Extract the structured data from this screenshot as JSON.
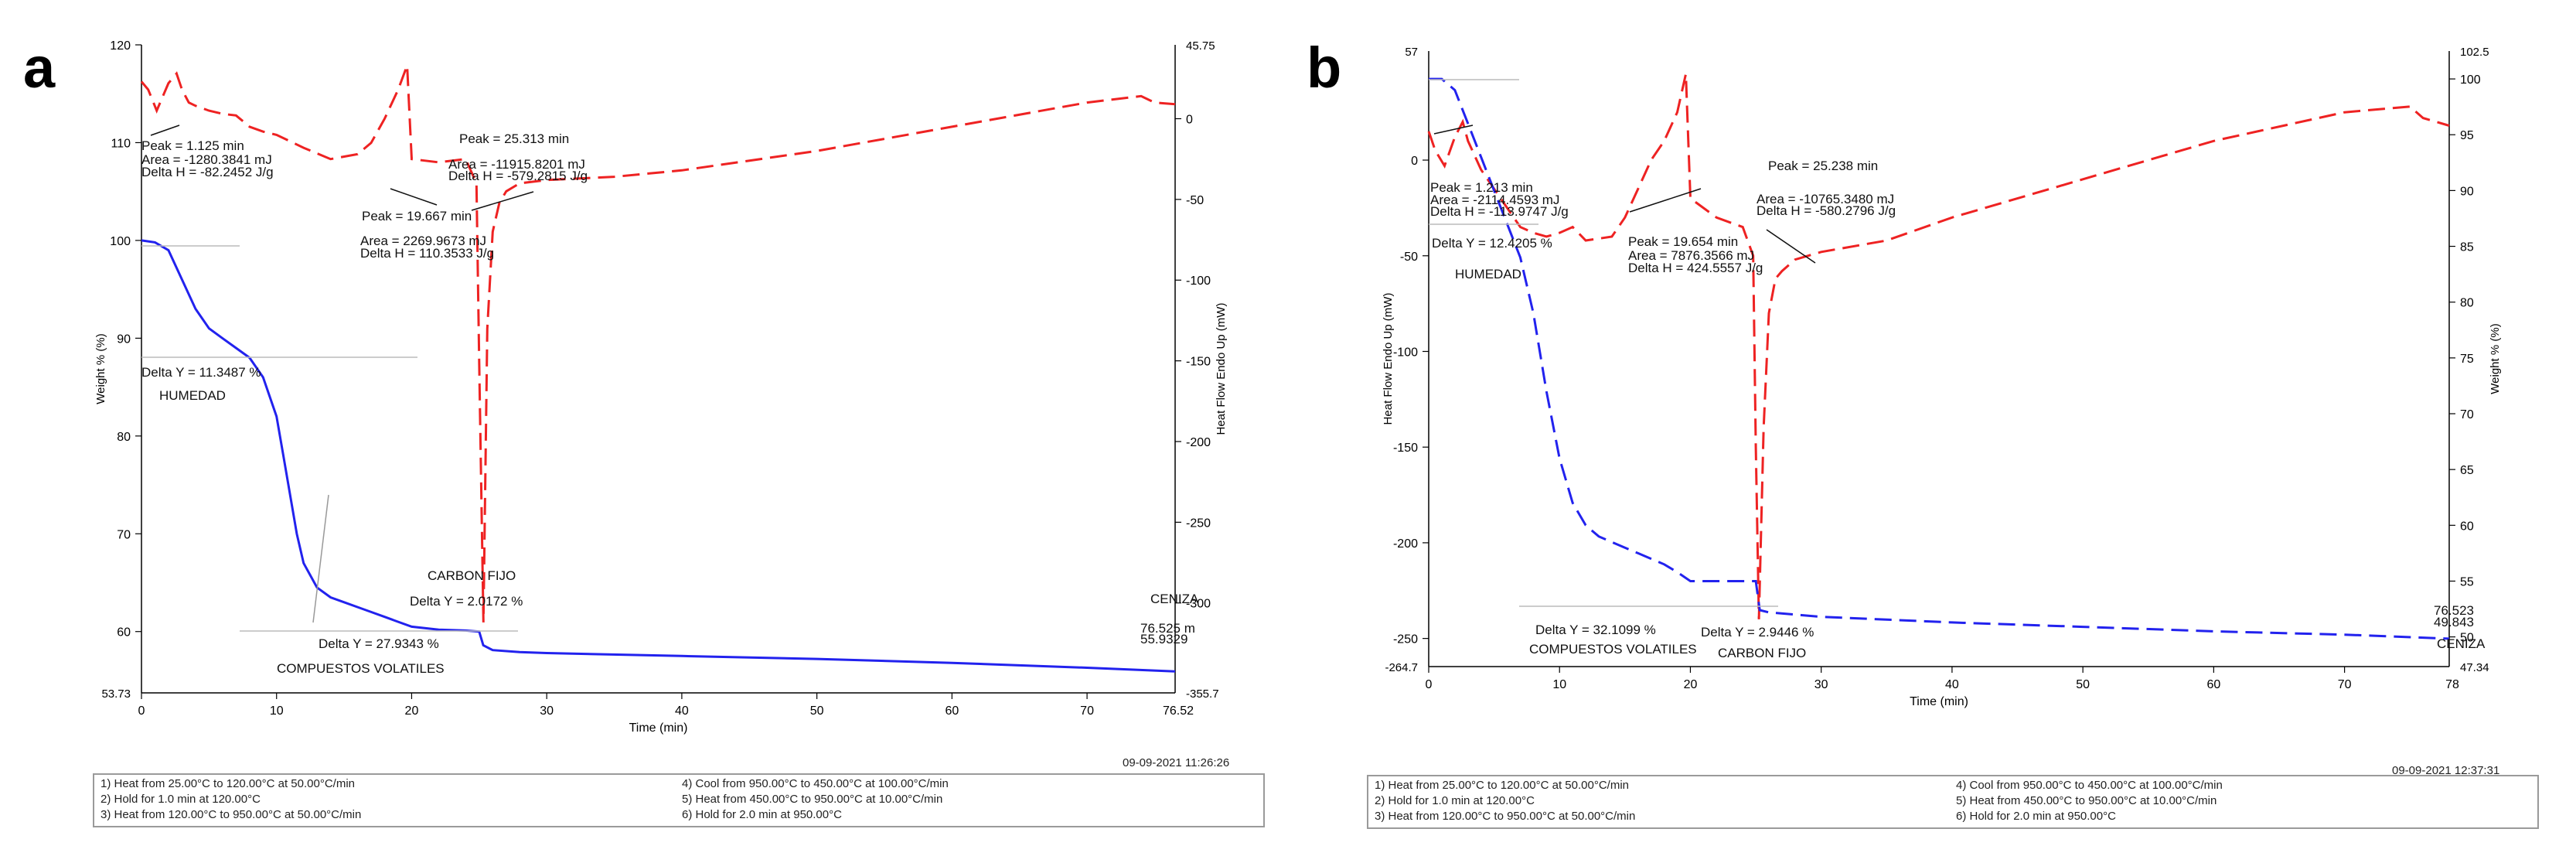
{
  "panels": [
    {
      "letter": "a",
      "timestamp": "09-09-2021 11:26:26",
      "steps": [
        "1)  Heat from 25.00°C to 120.00°C at 50.00°C/min",
        "2)  Hold for 1.0 min at 120.00°C",
        "3)  Heat from 120.00°C to 950.00°C at 50.00°C/min",
        "4)  Cool from 950.00°C to 450.00°C at 100.00°C/min",
        "5)  Heat from 450.00°C to 950.00°C at 10.00°C/min",
        "6)  Hold for 2.0 min at 950.00°C"
      ]
    },
    {
      "letter": "b",
      "timestamp": "09-09-2021 12:37:31",
      "steps": [
        "1)  Heat from 25.00°C to 120.00°C at 50.00°C/min",
        "2)  Hold for 1.0 min at 120.00°C",
        "3)  Heat from 120.00°C to 950.00°C at 50.00°C/min",
        "4)  Cool from 950.00°C to 450.00°C at 100.00°C/min",
        "5)  Heat from 450.00°C to 950.00°C at 10.00°C/min",
        "6)  Hold for 2.0 min at 950.00°C"
      ]
    }
  ],
  "chart_data": [
    {
      "type": "line",
      "panel": "a",
      "xlabel": "Time (min)",
      "left_label": "Weight % (%)",
      "right_label": "Heat Flow Endo Up (mW)",
      "x_ticks": [
        0,
        10,
        20,
        30,
        40,
        50,
        60,
        70
      ],
      "x_end_label": "76.52",
      "xlim": [
        0,
        76.52
      ],
      "weight": {
        "name": "Weight %",
        "style": "solid",
        "color": "#2222ee",
        "ylim": [
          53.73,
          120
        ],
        "tick_values": [
          60,
          70,
          80,
          90,
          100,
          110,
          120
        ],
        "bottom_label": "53.73",
        "x": [
          0,
          1,
          2,
          3,
          4,
          5,
          6,
          7,
          8,
          9,
          10,
          10.5,
          11,
          11.5,
          12,
          13,
          14,
          15,
          16,
          17,
          18,
          19,
          20,
          22,
          24,
          25,
          25.3,
          26,
          28,
          30,
          40,
          50,
          60,
          70,
          76.52
        ],
        "y": [
          100,
          99.8,
          99,
          96,
          93,
          91,
          90,
          89,
          88,
          86,
          82,
          78,
          74,
          70,
          67,
          64.5,
          63.5,
          63,
          62.5,
          62,
          61.5,
          61,
          60.5,
          60.2,
          60.1,
          60,
          58.6,
          58.1,
          57.9,
          57.8,
          57.5,
          57.2,
          56.8,
          56.3,
          55.93
        ]
      },
      "heatflow": {
        "name": "Heat Flow",
        "style": "dashed",
        "color": "#ee2222",
        "ylim": [
          -355.7,
          45.75
        ],
        "tick_values": [
          0,
          -50,
          -100,
          -150,
          -200,
          -250,
          -300
        ],
        "top_label": "45.75",
        "bottom_label": "-355.7",
        "x": [
          0,
          0.5,
          1.125,
          2,
          2.6,
          3,
          3.5,
          4,
          5,
          6,
          7,
          8,
          9,
          10,
          12,
          14,
          16,
          17,
          18,
          19,
          19.667,
          20,
          22,
          24,
          24.8,
          25,
          25.313,
          25.6,
          26,
          26.5,
          27,
          28,
          30,
          35,
          40,
          50,
          60,
          70,
          74,
          75,
          76.52
        ],
        "y": [
          23,
          18,
          5,
          22,
          28,
          18,
          10,
          8,
          5,
          3,
          2,
          -5,
          -8,
          -10,
          -18,
          -25,
          -22,
          -15,
          0,
          18,
          33,
          -25,
          -27,
          -25,
          -40,
          -150,
          -312,
          -130,
          -70,
          -52,
          -45,
          -40,
          -38,
          -36,
          -32,
          -20,
          -5,
          10,
          14,
          10,
          9
        ]
      },
      "annotations": [
        "Peak = 1.125 min",
        "Area = -1280.3841 mJ",
        "Delta H = -82.2452 J/g",
        "Peak = 25.313 min",
        "Area = -11915.8201 mJ",
        "Delta H = -579.2815 J/g",
        "Peak = 19.667 min",
        "Area = 2269.9673 mJ",
        "Delta H = 110.3533 J/g",
        "Delta Y = 11.3487 %",
        "HUMEDAD",
        "CARBON FIJO",
        "Delta Y = 2.0172 %",
        "Delta Y = 27.9343 %",
        "COMPUESTOS VOLATILES",
        "CENIZA",
        "76.525 m",
        "55.9329"
      ]
    },
    {
      "type": "line",
      "panel": "b",
      "xlabel": "Time (min)",
      "left_label": "Heat Flow Endo Up (mW)",
      "right_label": "Weight % (%)",
      "x_ticks": [
        0,
        10,
        20,
        30,
        40,
        50,
        60,
        70
      ],
      "x_end_label": "78",
      "xlim": [
        0,
        78
      ],
      "heatflow": {
        "name": "Heat Flow",
        "style": "dashed",
        "color": "#ee2222",
        "ylim": [
          -264.7,
          57
        ],
        "tick_values": [
          0,
          -50,
          -100,
          -150,
          -200,
          -250
        ],
        "top_label": "57",
        "bottom_label": "-264.7",
        "x": [
          0,
          0.5,
          1.213,
          2,
          2.6,
          3,
          4,
          5,
          6,
          7,
          8,
          9,
          10,
          11,
          12,
          14,
          15,
          16,
          17,
          18,
          19,
          19.654,
          20,
          22,
          24,
          24.8,
          25,
          25.238,
          25.6,
          26,
          26.5,
          27,
          28,
          30,
          35,
          40,
          50,
          60,
          70,
          75,
          76,
          78
        ],
        "y": [
          15,
          5,
          -3,
          12,
          20,
          10,
          -5,
          -15,
          -25,
          -35,
          -38,
          -40,
          -38,
          -35,
          -42,
          -40,
          -30,
          -15,
          0,
          10,
          25,
          45,
          -20,
          -30,
          -35,
          -50,
          -150,
          -240,
          -140,
          -80,
          -62,
          -58,
          -52,
          -48,
          -42,
          -30,
          -10,
          10,
          25,
          28,
          22,
          18
        ]
      },
      "weight": {
        "name": "Weight %",
        "style": "dashed",
        "color": "#2222ee",
        "ylim": [
          47.34,
          102.5
        ],
        "tick_values": [
          50,
          55,
          60,
          65,
          70,
          75,
          80,
          85,
          90,
          95,
          100
        ],
        "top_label": "102.5",
        "bottom_label": "47.34",
        "x": [
          0,
          1,
          2,
          3,
          4,
          5,
          6,
          7,
          8,
          9,
          10,
          11,
          12,
          13,
          14,
          15,
          16,
          17,
          18,
          19,
          20,
          22,
          24,
          25,
          25.3,
          26,
          28,
          30,
          40,
          50,
          60,
          70,
          78
        ],
        "y": [
          100,
          100,
          99,
          96,
          93,
          90,
          87,
          84,
          79,
          72,
          66,
          62,
          60,
          59,
          58.5,
          58,
          57.5,
          57,
          56.5,
          55.8,
          55,
          55,
          55,
          55,
          52.4,
          52.2,
          52,
          51.8,
          51.3,
          50.9,
          50.5,
          50.2,
          49.84
        ]
      },
      "annotations": [
        "Peak = 1.213 min",
        "Area = -2114.4593 mJ",
        "Delta H = -113.9747 J/g",
        "Delta Y = 12.4205 %",
        "HUMEDAD",
        "Peak = 25.238 min",
        "Area = -10765.3480 mJ",
        "Delta H = -580.2796 J/g",
        "Peak = 19.654 min",
        "Area = 7876.3566 mJ",
        "Delta H = 424.5557 J/g",
        "Delta Y = 32.1099 %",
        "COMPUESTOS VOLATILES",
        "Delta Y = 2.9446 %",
        "CARBON FIJO",
        "76.523",
        "49.843",
        "CENIZA"
      ]
    }
  ]
}
